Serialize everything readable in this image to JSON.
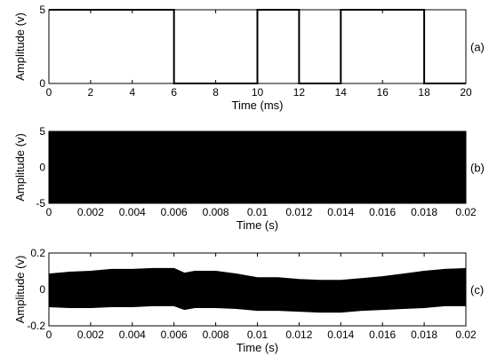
{
  "colors": {
    "foreground": "#000000",
    "background": "#ffffff"
  },
  "chart_data": [
    {
      "type": "line",
      "panel_label": "(a)",
      "xlabel": "Time (ms)",
      "ylabel": "Amplitude (v)",
      "xlim": [
        0,
        20
      ],
      "ylim": [
        0,
        5
      ],
      "xticks": [
        0,
        2,
        4,
        6,
        8,
        10,
        12,
        14,
        16,
        18,
        20
      ],
      "xtick_labels": [
        "0",
        "2",
        "4",
        "6",
        "8",
        "10",
        "12",
        "14",
        "16",
        "18",
        "20"
      ],
      "yticks": [
        0,
        5
      ],
      "ytick_labels": [
        "0",
        "5"
      ],
      "grid": false,
      "series": [
        {
          "x": [
            0,
            6,
            6,
            10,
            10,
            12,
            12,
            14,
            14,
            18,
            18,
            20
          ],
          "y": [
            5,
            5,
            0,
            0,
            5,
            5,
            0,
            0,
            5,
            5,
            0,
            0
          ]
        }
      ]
    },
    {
      "type": "area",
      "panel_label": "(b)",
      "xlabel": "Time (s)",
      "ylabel": "Amplitude (v)",
      "xlim": [
        0,
        0.02
      ],
      "ylim": [
        -5,
        5
      ],
      "xticks": [
        0,
        0.002,
        0.004,
        0.006,
        0.008,
        0.01,
        0.012,
        0.014,
        0.016,
        0.018,
        0.02
      ],
      "xtick_labels": [
        "0",
        "0.002",
        "0.004",
        "0.006",
        "0.008",
        "0.01",
        "0.012",
        "0.014",
        "0.016",
        "0.018",
        "0.02"
      ],
      "yticks": [
        -5,
        0,
        5
      ],
      "ytick_labels": [
        "-5",
        "0",
        "5"
      ],
      "grid": false,
      "envelope": {
        "x": [
          0,
          0.02
        ],
        "upper": [
          5,
          5
        ],
        "lower": [
          -5,
          -5
        ]
      }
    },
    {
      "type": "area",
      "panel_label": "(c)",
      "xlabel": "Time (s)",
      "ylabel": "Amplitude (v)",
      "xlim": [
        0,
        0.02
      ],
      "ylim": [
        -0.2,
        0.2
      ],
      "xticks": [
        0,
        0.002,
        0.004,
        0.006,
        0.008,
        0.01,
        0.012,
        0.014,
        0.016,
        0.018,
        0.02
      ],
      "xtick_labels": [
        "0",
        "0.002",
        "0.004",
        "0.006",
        "0.008",
        "0.01",
        "0.012",
        "0.014",
        "0.016",
        "0.018",
        "0.02"
      ],
      "yticks": [
        -0.2,
        0,
        0.2
      ],
      "ytick_labels": [
        "-0.2",
        "0",
        "0.2"
      ],
      "grid": false,
      "envelope": {
        "x": [
          0,
          0.001,
          0.002,
          0.003,
          0.004,
          0.005,
          0.006,
          0.0065,
          0.007,
          0.008,
          0.009,
          0.01,
          0.011,
          0.012,
          0.013,
          0.014,
          0.015,
          0.016,
          0.017,
          0.018,
          0.019,
          0.02
        ],
        "upper": [
          0.085,
          0.095,
          0.1,
          0.11,
          0.11,
          0.115,
          0.115,
          0.09,
          0.1,
          0.1,
          0.085,
          0.065,
          0.065,
          0.055,
          0.05,
          0.05,
          0.06,
          0.07,
          0.085,
          0.1,
          0.11,
          0.115
        ],
        "lower": [
          -0.095,
          -0.1,
          -0.1,
          -0.095,
          -0.095,
          -0.09,
          -0.09,
          -0.11,
          -0.1,
          -0.1,
          -0.105,
          -0.115,
          -0.115,
          -0.12,
          -0.125,
          -0.125,
          -0.115,
          -0.11,
          -0.105,
          -0.1,
          -0.09,
          -0.09
        ]
      }
    }
  ]
}
